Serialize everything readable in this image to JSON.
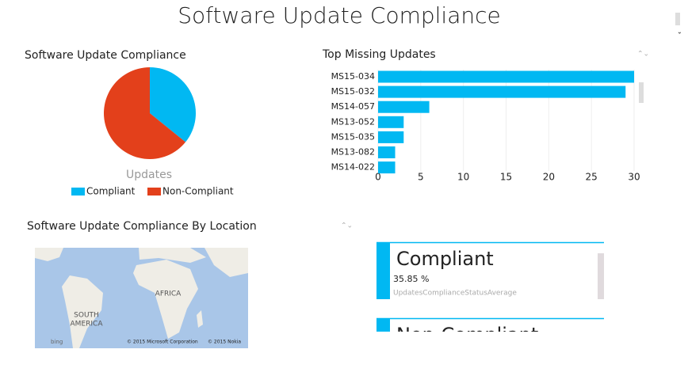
{
  "page_title": "Software Update Compliance",
  "chart_data": [
    {
      "type": "pie",
      "title": "Software Update Compliance",
      "legend_title": "Updates",
      "categories": [
        "Compliant",
        "Non-Compliant"
      ],
      "values": [
        35.85,
        64.15
      ],
      "colors": [
        "#01b8f2",
        "#e3401b"
      ],
      "legend": "bottom"
    },
    {
      "type": "bar",
      "orientation": "horizontal",
      "title": "Top Missing Updates",
      "categories": [
        "MS15-034",
        "MS15-032",
        "MS14-057",
        "MS13-052",
        "MS15-035",
        "MS13-082",
        "MS14-022"
      ],
      "values": [
        30,
        29,
        6,
        3,
        3,
        2,
        2
      ],
      "color": "#01b8f2",
      "xlim": [
        0,
        30
      ],
      "xticks": [
        0,
        5,
        10,
        15,
        20,
        25,
        30
      ],
      "grid": true
    }
  ],
  "map": {
    "title": "Software Update Compliance By Location",
    "labels": [
      "AFRICA",
      "SOUTH",
      "AMERICA"
    ],
    "logo": "bing",
    "copyright": [
      "© 2015 Microsoft Corporation",
      "© 2015 Nokia"
    ]
  },
  "cards": [
    {
      "title": "Compliant",
      "value": "35.85 %",
      "caption": "UpdatesComplianceStatusAverage"
    },
    {
      "title": "Non-Compliant"
    }
  ]
}
